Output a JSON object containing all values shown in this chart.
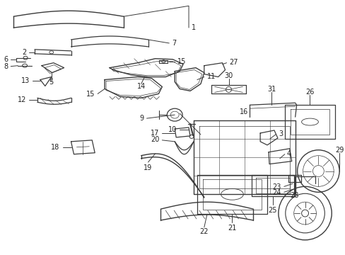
{
  "bg_color": "#ffffff",
  "fig_width": 4.89,
  "fig_height": 3.6,
  "dpi": 100,
  "line_color": "#3a3a3a",
  "label_color": "#222222",
  "font_size": 7.0
}
